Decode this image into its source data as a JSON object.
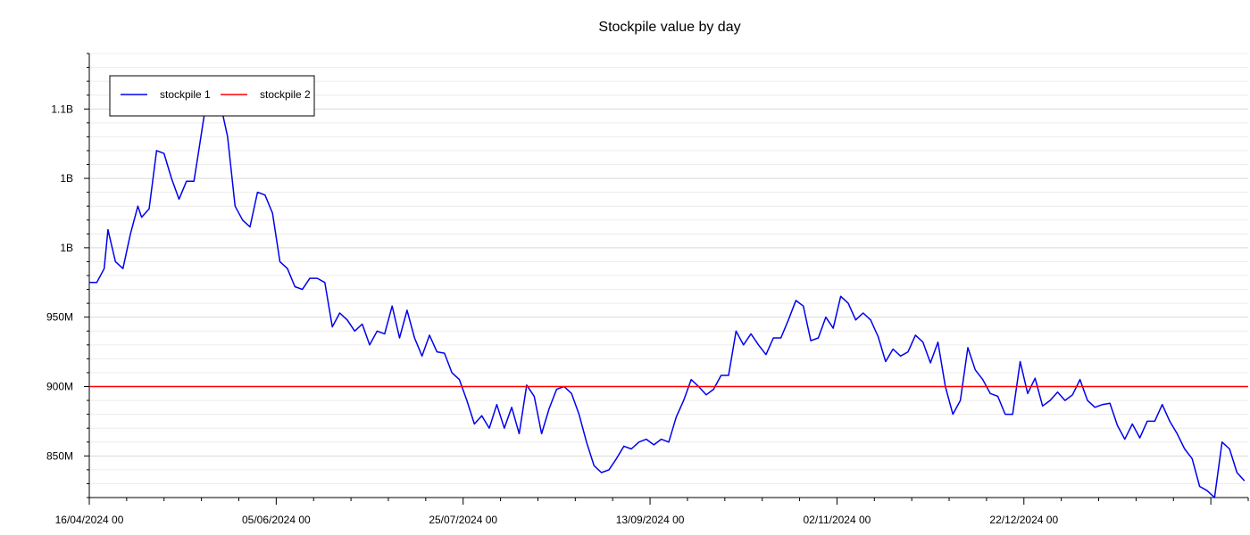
{
  "chart_data": {
    "type": "line",
    "title": "Stockpile value by day",
    "xlabel": "",
    "ylabel": "",
    "x_start": "2024-04-16",
    "x_end": "2025-02-20",
    "ylim": [
      820000000,
      1140000000
    ],
    "y_ticks": [
      {
        "value": 850000000,
        "label": "850M"
      },
      {
        "value": 900000000,
        "label": "900M"
      },
      {
        "value": 950000000,
        "label": "950M"
      },
      {
        "value": 1000000000,
        "label": "1B"
      },
      {
        "value": 1050000000,
        "label": "1B"
      },
      {
        "value": 1100000000,
        "label": "1.1B"
      }
    ],
    "x_ticks": [
      {
        "date": "2024-04-16",
        "label": "16/04/2024 00"
      },
      {
        "date": "2024-06-05",
        "label": "05/06/2024 00"
      },
      {
        "date": "2024-07-25",
        "label": "25/07/2024 00"
      },
      {
        "date": "2024-09-13",
        "label": "13/09/2024 00"
      },
      {
        "date": "2024-11-02",
        "label": "02/11/2024 00"
      },
      {
        "date": "2024-12-22",
        "label": "22/12/2024 00"
      }
    ],
    "grid": "horizontal",
    "legend": "top-left",
    "series": [
      {
        "name": "stockpile 1",
        "color": "#0000ee",
        "points": [
          [
            "2024-04-16",
            975000000
          ],
          [
            "2024-04-18",
            975000000
          ],
          [
            "2024-04-20",
            985000000
          ],
          [
            "2024-04-21",
            1013000000
          ],
          [
            "2024-04-23",
            990000000
          ],
          [
            "2024-04-25",
            985000000
          ],
          [
            "2024-04-27",
            1010000000
          ],
          [
            "2024-04-29",
            1030000000
          ],
          [
            "2024-04-30",
            1022000000
          ],
          [
            "2024-05-02",
            1028000000
          ],
          [
            "2024-05-04",
            1070000000
          ],
          [
            "2024-05-06",
            1068000000
          ],
          [
            "2024-05-08",
            1050000000
          ],
          [
            "2024-05-10",
            1035000000
          ],
          [
            "2024-05-12",
            1048000000
          ],
          [
            "2024-05-14",
            1048000000
          ],
          [
            "2024-05-15",
            1065000000
          ],
          [
            "2024-05-17",
            1100000000
          ],
          [
            "2024-05-19",
            1110000000
          ],
          [
            "2024-05-21",
            1105000000
          ],
          [
            "2024-05-23",
            1080000000
          ],
          [
            "2024-05-25",
            1030000000
          ],
          [
            "2024-05-27",
            1020000000
          ],
          [
            "2024-05-29",
            1015000000
          ],
          [
            "2024-05-31",
            1040000000
          ],
          [
            "2024-06-02",
            1038000000
          ],
          [
            "2024-06-04",
            1025000000
          ],
          [
            "2024-06-06",
            990000000
          ],
          [
            "2024-06-08",
            985000000
          ],
          [
            "2024-06-10",
            972000000
          ],
          [
            "2024-06-12",
            970000000
          ],
          [
            "2024-06-14",
            978000000
          ],
          [
            "2024-06-16",
            978000000
          ],
          [
            "2024-06-18",
            975000000
          ],
          [
            "2024-06-20",
            943000000
          ],
          [
            "2024-06-22",
            953000000
          ],
          [
            "2024-06-24",
            948000000
          ],
          [
            "2024-06-26",
            940000000
          ],
          [
            "2024-06-28",
            945000000
          ],
          [
            "2024-06-30",
            930000000
          ],
          [
            "2024-07-02",
            940000000
          ],
          [
            "2024-07-04",
            938000000
          ],
          [
            "2024-07-06",
            958000000
          ],
          [
            "2024-07-08",
            935000000
          ],
          [
            "2024-07-10",
            955000000
          ],
          [
            "2024-07-12",
            935000000
          ],
          [
            "2024-07-14",
            922000000
          ],
          [
            "2024-07-16",
            937000000
          ],
          [
            "2024-07-18",
            925000000
          ],
          [
            "2024-07-20",
            924000000
          ],
          [
            "2024-07-22",
            910000000
          ],
          [
            "2024-07-24",
            905000000
          ],
          [
            "2024-07-26",
            890000000
          ],
          [
            "2024-07-28",
            873000000
          ],
          [
            "2024-07-30",
            879000000
          ],
          [
            "2024-08-01",
            870000000
          ],
          [
            "2024-08-03",
            887000000
          ],
          [
            "2024-08-05",
            870000000
          ],
          [
            "2024-08-07",
            885000000
          ],
          [
            "2024-08-09",
            866000000
          ],
          [
            "2024-08-11",
            901000000
          ],
          [
            "2024-08-13",
            893000000
          ],
          [
            "2024-08-15",
            866000000
          ],
          [
            "2024-08-17",
            884000000
          ],
          [
            "2024-08-19",
            898000000
          ],
          [
            "2024-08-21",
            900000000
          ],
          [
            "2024-08-23",
            895000000
          ],
          [
            "2024-08-25",
            880000000
          ],
          [
            "2024-08-27",
            860000000
          ],
          [
            "2024-08-29",
            843000000
          ],
          [
            "2024-08-31",
            838000000
          ],
          [
            "2024-09-02",
            840000000
          ],
          [
            "2024-09-04",
            848000000
          ],
          [
            "2024-09-06",
            857000000
          ],
          [
            "2024-09-08",
            855000000
          ],
          [
            "2024-09-10",
            860000000
          ],
          [
            "2024-09-12",
            862000000
          ],
          [
            "2024-09-14",
            858000000
          ],
          [
            "2024-09-16",
            862000000
          ],
          [
            "2024-09-18",
            860000000
          ],
          [
            "2024-09-20",
            878000000
          ],
          [
            "2024-09-22",
            890000000
          ],
          [
            "2024-09-24",
            905000000
          ],
          [
            "2024-09-26",
            900000000
          ],
          [
            "2024-09-28",
            894000000
          ],
          [
            "2024-09-30",
            898000000
          ],
          [
            "2024-10-02",
            908000000
          ],
          [
            "2024-10-04",
            908000000
          ],
          [
            "2024-10-06",
            940000000
          ],
          [
            "2024-10-08",
            930000000
          ],
          [
            "2024-10-10",
            938000000
          ],
          [
            "2024-10-12",
            930000000
          ],
          [
            "2024-10-14",
            923000000
          ],
          [
            "2024-10-16",
            935000000
          ],
          [
            "2024-10-18",
            935000000
          ],
          [
            "2024-10-20",
            948000000
          ],
          [
            "2024-10-22",
            962000000
          ],
          [
            "2024-10-24",
            958000000
          ],
          [
            "2024-10-26",
            933000000
          ],
          [
            "2024-10-28",
            935000000
          ],
          [
            "2024-10-30",
            950000000
          ],
          [
            "2024-11-01",
            942000000
          ],
          [
            "2024-11-03",
            965000000
          ],
          [
            "2024-11-05",
            960000000
          ],
          [
            "2024-11-07",
            948000000
          ],
          [
            "2024-11-09",
            953000000
          ],
          [
            "2024-11-11",
            948000000
          ],
          [
            "2024-11-13",
            936000000
          ],
          [
            "2024-11-15",
            918000000
          ],
          [
            "2024-11-17",
            927000000
          ],
          [
            "2024-11-19",
            922000000
          ],
          [
            "2024-11-21",
            925000000
          ],
          [
            "2024-11-23",
            937000000
          ],
          [
            "2024-11-25",
            932000000
          ],
          [
            "2024-11-27",
            917000000
          ],
          [
            "2024-11-29",
            932000000
          ],
          [
            "2024-12-01",
            900000000
          ],
          [
            "2024-12-03",
            880000000
          ],
          [
            "2024-12-05",
            890000000
          ],
          [
            "2024-12-07",
            928000000
          ],
          [
            "2024-12-09",
            912000000
          ],
          [
            "2024-12-11",
            905000000
          ],
          [
            "2024-12-13",
            895000000
          ],
          [
            "2024-12-15",
            893000000
          ],
          [
            "2024-12-17",
            880000000
          ],
          [
            "2024-12-19",
            880000000
          ],
          [
            "2024-12-21",
            918000000
          ],
          [
            "2024-12-23",
            895000000
          ],
          [
            "2024-12-25",
            906000000
          ],
          [
            "2024-12-27",
            886000000
          ],
          [
            "2024-12-29",
            890000000
          ],
          [
            "2024-12-31",
            896000000
          ],
          [
            "2025-01-02",
            890000000
          ],
          [
            "2025-01-04",
            894000000
          ],
          [
            "2025-01-06",
            905000000
          ],
          [
            "2025-01-08",
            890000000
          ],
          [
            "2025-01-10",
            885000000
          ],
          [
            "2025-01-12",
            887000000
          ],
          [
            "2025-01-14",
            888000000
          ],
          [
            "2025-01-16",
            872000000
          ],
          [
            "2025-01-18",
            862000000
          ],
          [
            "2025-01-20",
            873000000
          ],
          [
            "2025-01-22",
            863000000
          ],
          [
            "2025-01-24",
            875000000
          ],
          [
            "2025-01-26",
            875000000
          ],
          [
            "2025-01-28",
            887000000
          ],
          [
            "2025-01-30",
            875000000
          ],
          [
            "2025-02-01",
            866000000
          ],
          [
            "2025-02-03",
            855000000
          ],
          [
            "2025-02-05",
            848000000
          ],
          [
            "2025-02-07",
            828000000
          ],
          [
            "2025-02-09",
            825000000
          ],
          [
            "2025-02-11",
            820000000
          ],
          [
            "2025-02-13",
            860000000
          ],
          [
            "2025-02-15",
            855000000
          ],
          [
            "2025-02-17",
            838000000
          ],
          [
            "2025-02-19",
            832000000
          ]
        ]
      },
      {
        "name": "stockpile 2",
        "color": "#ff0000",
        "points": [
          [
            "2024-04-16",
            900000000
          ],
          [
            "2025-02-20",
            900000000
          ]
        ]
      }
    ]
  }
}
